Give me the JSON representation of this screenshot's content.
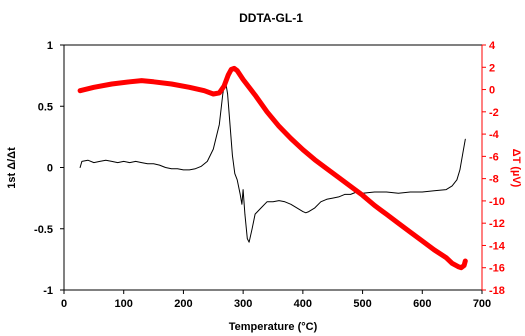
{
  "chart_data": {
    "type": "line",
    "title": "DDTA-GL-1",
    "xlabel": "Temperature (°C)",
    "ylabel_left": "1st Δ/Δt",
    "ylabel_right": "ΔT (µV)",
    "xlim": [
      0,
      700
    ],
    "ylim_left": [
      -1,
      1
    ],
    "ylim_right": [
      -18,
      4
    ],
    "x_ticks": [
      0,
      100,
      200,
      300,
      400,
      500,
      600,
      700
    ],
    "y_left_ticks": [
      -1,
      -0.5,
      0,
      0.5,
      1
    ],
    "y_right_ticks": [
      -18,
      -16,
      -14,
      -12,
      -10,
      -8,
      -6,
      -4,
      -2,
      0,
      2,
      4
    ],
    "grid": false,
    "series": [
      {
        "axis": "left",
        "color": "#000000",
        "points": [
          [
            27,
            0.0
          ],
          [
            30,
            0.05
          ],
          [
            40,
            0.06
          ],
          [
            50,
            0.04
          ],
          [
            60,
            0.05
          ],
          [
            70,
            0.06
          ],
          [
            80,
            0.05
          ],
          [
            90,
            0.04
          ],
          [
            100,
            0.05
          ],
          [
            110,
            0.04
          ],
          [
            120,
            0.05
          ],
          [
            130,
            0.04
          ],
          [
            140,
            0.03
          ],
          [
            150,
            0.03
          ],
          [
            160,
            0.02
          ],
          [
            170,
            0.0
          ],
          [
            180,
            -0.01
          ],
          [
            190,
            -0.01
          ],
          [
            200,
            -0.02
          ],
          [
            210,
            -0.02
          ],
          [
            220,
            -0.01
          ],
          [
            230,
            0.01
          ],
          [
            240,
            0.05
          ],
          [
            250,
            0.15
          ],
          [
            260,
            0.35
          ],
          [
            266,
            0.6
          ],
          [
            270,
            0.72
          ],
          [
            274,
            0.6
          ],
          [
            278,
            0.35
          ],
          [
            282,
            0.1
          ],
          [
            286,
            -0.05
          ],
          [
            290,
            -0.1
          ],
          [
            295,
            -0.22
          ],
          [
            298,
            -0.3
          ],
          [
            300,
            -0.18
          ],
          [
            303,
            -0.38
          ],
          [
            307,
            -0.58
          ],
          [
            310,
            -0.61
          ],
          [
            315,
            -0.5
          ],
          [
            320,
            -0.38
          ],
          [
            330,
            -0.33
          ],
          [
            340,
            -0.28
          ],
          [
            350,
            -0.28
          ],
          [
            360,
            -0.27
          ],
          [
            370,
            -0.28
          ],
          [
            380,
            -0.3
          ],
          [
            390,
            -0.33
          ],
          [
            400,
            -0.36
          ],
          [
            405,
            -0.37
          ],
          [
            410,
            -0.36
          ],
          [
            420,
            -0.33
          ],
          [
            430,
            -0.28
          ],
          [
            440,
            -0.26
          ],
          [
            450,
            -0.25
          ],
          [
            460,
            -0.24
          ],
          [
            470,
            -0.22
          ],
          [
            480,
            -0.22
          ],
          [
            490,
            -0.2
          ],
          [
            500,
            -0.21
          ],
          [
            520,
            -0.2
          ],
          [
            540,
            -0.2
          ],
          [
            560,
            -0.21
          ],
          [
            580,
            -0.2
          ],
          [
            600,
            -0.2
          ],
          [
            620,
            -0.19
          ],
          [
            640,
            -0.18
          ],
          [
            650,
            -0.15
          ],
          [
            658,
            -0.1
          ],
          [
            663,
            -0.02
          ],
          [
            668,
            0.12
          ],
          [
            672,
            0.23
          ]
        ]
      },
      {
        "axis": "right",
        "color": "#ff0000",
        "points": [
          [
            27,
            -0.1
          ],
          [
            50,
            0.2
          ],
          [
            80,
            0.5
          ],
          [
            110,
            0.7
          ],
          [
            130,
            0.8
          ],
          [
            150,
            0.7
          ],
          [
            180,
            0.5
          ],
          [
            210,
            0.2
          ],
          [
            235,
            -0.1
          ],
          [
            250,
            -0.4
          ],
          [
            260,
            -0.3
          ],
          [
            268,
            0.3
          ],
          [
            275,
            1.3
          ],
          [
            280,
            1.8
          ],
          [
            285,
            1.9
          ],
          [
            290,
            1.7
          ],
          [
            300,
            0.9
          ],
          [
            320,
            -0.5
          ],
          [
            340,
            -2.0
          ],
          [
            360,
            -3.3
          ],
          [
            380,
            -4.4
          ],
          [
            400,
            -5.4
          ],
          [
            420,
            -6.3
          ],
          [
            440,
            -7.1
          ],
          [
            460,
            -7.9
          ],
          [
            480,
            -8.7
          ],
          [
            500,
            -9.5
          ],
          [
            520,
            -10.4
          ],
          [
            540,
            -11.2
          ],
          [
            560,
            -12.0
          ],
          [
            580,
            -12.8
          ],
          [
            600,
            -13.6
          ],
          [
            620,
            -14.4
          ],
          [
            640,
            -15.1
          ],
          [
            650,
            -15.6
          ],
          [
            660,
            -15.9
          ],
          [
            665,
            -16.0
          ],
          [
            670,
            -15.8
          ],
          [
            672,
            -15.4
          ]
        ]
      }
    ]
  },
  "colors": {
    "right_axis": "#ff0000",
    "left_axis": "#000000"
  }
}
